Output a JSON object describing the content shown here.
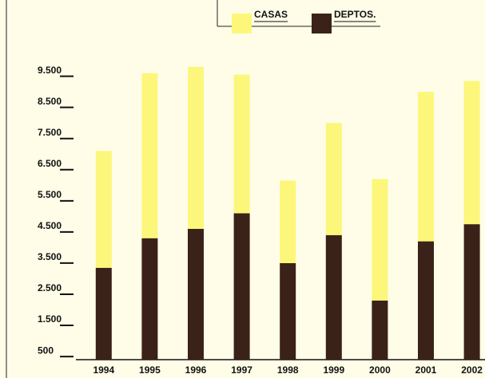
{
  "chart_data": {
    "type": "stacked_bar",
    "categories": [
      "1994",
      "1995",
      "1996",
      "1997",
      "1998",
      "1999",
      "2000",
      "2001",
      "2002"
    ],
    "series": [
      {
        "name": "CASAS",
        "color": "#fcf77a",
        "values": [
          3750,
          5300,
          5200,
          4450,
          2650,
          3600,
          3900,
          4800,
          4600
        ]
      },
      {
        "name": "DEPTOS.",
        "color": "#3a2218",
        "values": [
          2950,
          3900,
          4200,
          4700,
          3100,
          4000,
          1900,
          3800,
          4350
        ]
      }
    ],
    "ylim": [
      400,
      9900
    ],
    "yticks": [
      500,
      {
        "value": 1500,
        "label": "1.500"
      },
      {
        "value": 2500,
        "label": "2.500"
      },
      {
        "value": 3500,
        "label": "3.500"
      },
      {
        "value": 4500,
        "label": "4.500"
      },
      {
        "value": 5500,
        "label": "5.500"
      },
      {
        "value": 6500,
        "label": "6.500"
      },
      {
        "value": 7500,
        "label": "7.500"
      },
      {
        "value": 8500,
        "label": "8.500"
      },
      {
        "value": 9500,
        "label": "9.500"
      }
    ],
    "legend": "top"
  }
}
